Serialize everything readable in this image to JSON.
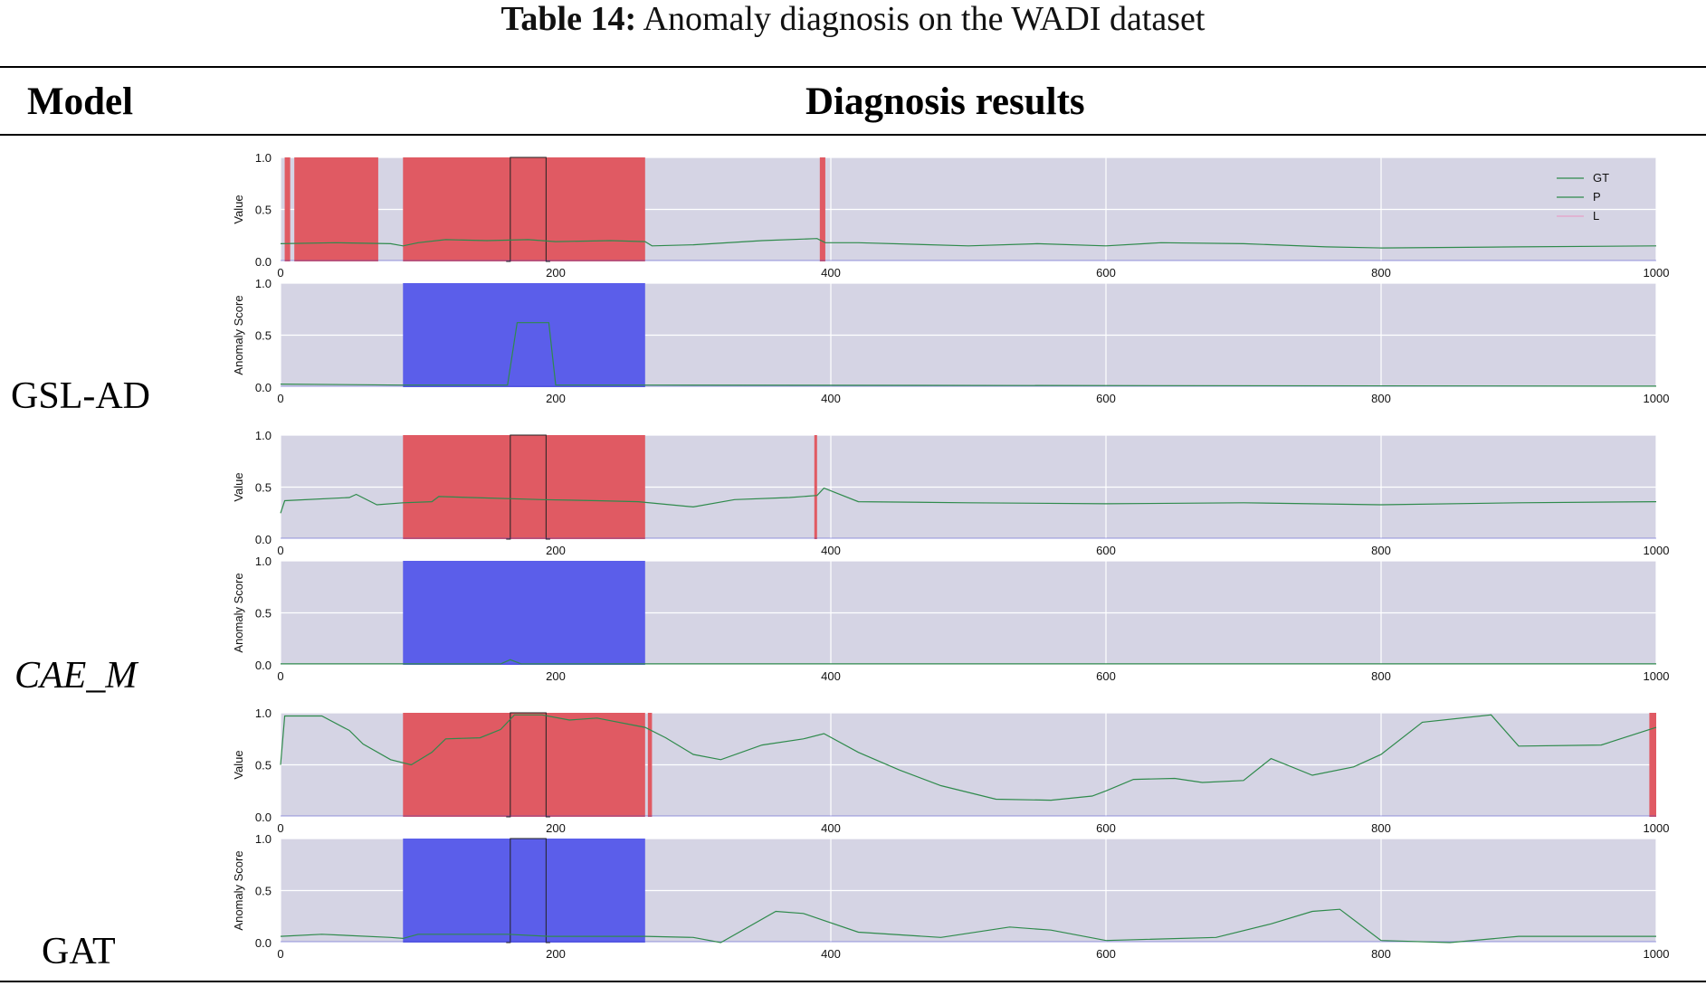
{
  "caption": {
    "label": "Table 14:",
    "text": "Anomaly diagnosis on the WADI dataset"
  },
  "header": {
    "model": "Model",
    "results": "Diagnosis results"
  },
  "models": [
    "GSL-AD",
    "CAE_M",
    "GAT"
  ],
  "colors": {
    "plot_bg": "#d5d4e4",
    "grid": "#ffffff",
    "anomaly_red": "#e05a63",
    "score_blue": "#5b5eea",
    "line_green": "#2f8a4c",
    "ground_blue": "#3a3acc"
  },
  "chart_data": [
    {
      "type": "line",
      "model": "GSL-AD",
      "ylabel": "Value",
      "xlim": [
        0,
        1000
      ],
      "ylim": [
        0,
        1
      ],
      "xticks": [
        0,
        200,
        400,
        600,
        800,
        1000
      ],
      "yticks": [
        0.0,
        0.5,
        1.0
      ],
      "legend": {
        "entries": [
          "GT",
          "P",
          "L"
        ],
        "placement": "top-right"
      },
      "shaded_regions": [
        [
          3,
          7
        ],
        [
          10,
          71
        ],
        [
          89,
          265
        ],
        [
          392,
          396
        ]
      ],
      "gt_square": [
        [
          167,
          193
        ]
      ],
      "series": [
        {
          "name": "P",
          "x": [
            0,
            40,
            80,
            89,
            100,
            120,
            150,
            180,
            200,
            240,
            265,
            270,
            300,
            350,
            390,
            396,
            420,
            500,
            550,
            600,
            640,
            700,
            760,
            800,
            900,
            1000
          ],
          "y": [
            0.17,
            0.18,
            0.17,
            0.15,
            0.18,
            0.21,
            0.2,
            0.21,
            0.19,
            0.2,
            0.19,
            0.15,
            0.16,
            0.2,
            0.22,
            0.18,
            0.18,
            0.15,
            0.17,
            0.15,
            0.18,
            0.17,
            0.14,
            0.13,
            0.14,
            0.15
          ]
        }
      ]
    },
    {
      "type": "line",
      "model": "GSL-AD",
      "ylabel": "Anomaly Score",
      "xlim": [
        0,
        1000
      ],
      "ylim": [
        0,
        1
      ],
      "xticks": [
        0,
        200,
        400,
        600,
        800,
        1000
      ],
      "yticks": [
        0.0,
        0.5,
        1.0
      ],
      "shaded_regions": [
        [
          89,
          265
        ]
      ],
      "gt_square": [],
      "series": [
        {
          "name": "P",
          "x": [
            0,
            89,
            165,
            172,
            195,
            200,
            265,
            1000
          ],
          "y": [
            0.03,
            0.02,
            0.02,
            0.62,
            0.62,
            0.02,
            0.02,
            0.01
          ]
        }
      ]
    },
    {
      "type": "line",
      "model": "CAE_M",
      "ylabel": "Value",
      "xlim": [
        0,
        1000
      ],
      "ylim": [
        0,
        1
      ],
      "xticks": [
        0,
        200,
        400,
        600,
        800,
        1000
      ],
      "yticks": [
        0.0,
        0.5,
        1.0
      ],
      "shaded_regions": [
        [
          89,
          265
        ],
        [
          388,
          390
        ]
      ],
      "gt_square": [
        [
          167,
          193
        ]
      ],
      "series": [
        {
          "name": "P",
          "x": [
            0,
            3,
            50,
            55,
            70,
            89,
            110,
            115,
            190,
            230,
            260,
            300,
            330,
            370,
            390,
            395,
            420,
            500,
            600,
            700,
            800,
            900,
            1000
          ],
          "y": [
            0.25,
            0.37,
            0.4,
            0.43,
            0.33,
            0.35,
            0.36,
            0.41,
            0.38,
            0.37,
            0.36,
            0.31,
            0.38,
            0.4,
            0.42,
            0.49,
            0.36,
            0.35,
            0.34,
            0.35,
            0.33,
            0.35,
            0.36
          ]
        }
      ]
    },
    {
      "type": "line",
      "model": "CAE_M",
      "ylabel": "Anomaly Score",
      "xlim": [
        0,
        1000
      ],
      "ylim": [
        0,
        1
      ],
      "xticks": [
        0,
        200,
        400,
        600,
        800,
        1000
      ],
      "yticks": [
        0.0,
        0.5,
        1.0
      ],
      "shaded_regions": [
        [
          89,
          265
        ]
      ],
      "gt_square": [],
      "series": [
        {
          "name": "P",
          "x": [
            0,
            160,
            167,
            175,
            1000
          ],
          "y": [
            0.01,
            0.01,
            0.05,
            0.01,
            0.01
          ]
        }
      ]
    },
    {
      "type": "line",
      "model": "GAT",
      "ylabel": "Value",
      "xlim": [
        0,
        1000
      ],
      "ylim": [
        0,
        1
      ],
      "xticks": [
        0,
        200,
        400,
        600,
        800,
        1000
      ],
      "yticks": [
        0.0,
        0.5,
        1.0
      ],
      "shaded_regions": [
        [
          89,
          265
        ],
        [
          267,
          270
        ],
        [
          995,
          1000
        ]
      ],
      "gt_square": [
        [
          167,
          193
        ]
      ],
      "series": [
        {
          "name": "P",
          "x": [
            0,
            3,
            30,
            50,
            60,
            80,
            95,
            110,
            120,
            145,
            160,
            170,
            190,
            210,
            230,
            265,
            280,
            300,
            320,
            350,
            380,
            395,
            420,
            450,
            480,
            520,
            560,
            590,
            600,
            620,
            650,
            670,
            700,
            720,
            750,
            780,
            800,
            830,
            880,
            900,
            960,
            1000
          ],
          "y": [
            0.5,
            0.97,
            0.97,
            0.83,
            0.7,
            0.55,
            0.5,
            0.62,
            0.75,
            0.76,
            0.84,
            0.98,
            0.98,
            0.93,
            0.95,
            0.86,
            0.76,
            0.6,
            0.55,
            0.69,
            0.75,
            0.8,
            0.62,
            0.45,
            0.3,
            0.17,
            0.16,
            0.2,
            0.25,
            0.36,
            0.37,
            0.33,
            0.35,
            0.56,
            0.4,
            0.48,
            0.6,
            0.91,
            0.98,
            0.68,
            0.69,
            0.86
          ]
        }
      ]
    },
    {
      "type": "line",
      "model": "GAT",
      "ylabel": "Anomaly Score",
      "xlim": [
        0,
        1000
      ],
      "ylim": [
        0,
        1
      ],
      "xticks": [
        0,
        200,
        400,
        600,
        800,
        1000
      ],
      "yticks": [
        0.0,
        0.5,
        1.0
      ],
      "shaded_regions": [
        [
          89,
          265
        ]
      ],
      "gt_square": [
        [
          167,
          193
        ]
      ],
      "series": [
        {
          "name": "P",
          "x": [
            0,
            30,
            80,
            89,
            100,
            165,
            195,
            265,
            300,
            320,
            360,
            380,
            420,
            480,
            530,
            560,
            600,
            680,
            720,
            750,
            770,
            800,
            850,
            900,
            1000
          ],
          "y": [
            0.06,
            0.08,
            0.05,
            0.04,
            0.08,
            0.08,
            0.06,
            0.06,
            0.05,
            0.0,
            0.3,
            0.28,
            0.1,
            0.05,
            0.15,
            0.12,
            0.02,
            0.05,
            0.18,
            0.3,
            0.32,
            0.02,
            0.0,
            0.06,
            0.06
          ]
        }
      ]
    }
  ]
}
